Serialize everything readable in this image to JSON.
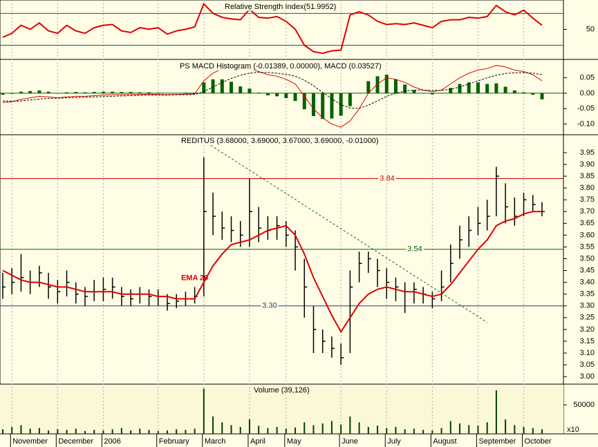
{
  "chart_data": [
    {
      "type": "line",
      "title": "Relative Strength Index(51.9952)",
      "color": "#dd0000",
      "values": [
        40,
        45,
        55,
        50,
        58,
        48,
        45,
        55,
        48,
        45,
        52,
        55,
        56,
        48,
        46,
        52,
        50,
        52,
        44,
        48,
        50,
        53,
        82,
        70,
        65,
        63,
        62,
        75,
        65,
        64,
        66,
        60,
        50,
        30,
        22,
        20,
        23,
        24,
        68,
        72,
        68,
        60,
        56,
        57,
        56,
        58,
        55,
        52,
        60,
        62,
        62,
        65,
        64,
        66,
        80,
        72,
        68,
        74,
        64,
        55
      ],
      "ylim": [
        14,
        85
      ],
      "yticks": [
        50
      ],
      "levels": [
        {
          "value": 70,
          "color": "#1d5a5a"
        },
        {
          "value": 30,
          "color": "#1d5a5a"
        }
      ]
    },
    {
      "type": "macd",
      "title": "PS MACD Histogram (-0.01389, 0.00000), MACD (0.03527)",
      "series": [
        {
          "name": "Histogram",
          "color": "#006400",
          "values": [
            -0.005,
            -0.002,
            0.005,
            0.007,
            0.009,
            0.005,
            0.001,
            0.003,
            0.004,
            0.003,
            0.004,
            0.005,
            0.005,
            0.004,
            0.004,
            0.003,
            0.003,
            0.002,
            0.001,
            0.001,
            0.002,
            0.002,
            0.035,
            0.045,
            0.045,
            0.037,
            0.022,
            0.015,
            0.002,
            -0.007,
            -0.01,
            -0.016,
            -0.025,
            -0.052,
            -0.074,
            -0.083,
            -0.082,
            -0.073,
            -0.042,
            -0.001,
            0.039,
            0.055,
            0.06,
            0.045,
            0.028,
            0.01,
            0.0,
            -0.004,
            0.001,
            0.017,
            0.03,
            0.035,
            0.035,
            0.03,
            0.032,
            0.021,
            0.009,
            0.003,
            -0.005,
            -0.02
          ]
        },
        {
          "name": "MACD",
          "color": "#dd0000",
          "values": [
            -0.03,
            -0.028,
            -0.02,
            -0.015,
            -0.01,
            -0.012,
            -0.015,
            -0.012,
            -0.01,
            -0.01,
            -0.008,
            -0.006,
            -0.005,
            -0.005,
            -0.004,
            -0.004,
            -0.003,
            -0.004,
            -0.005,
            -0.004,
            -0.003,
            -0.002,
            0.04,
            0.065,
            0.08,
            0.085,
            0.08,
            0.08,
            0.07,
            0.06,
            0.055,
            0.045,
            0.03,
            -0.01,
            -0.05,
            -0.08,
            -0.1,
            -0.11,
            -0.09,
            -0.05,
            0.0,
            0.03,
            0.05,
            0.045,
            0.035,
            0.02,
            0.01,
            0.005,
            0.01,
            0.03,
            0.05,
            0.065,
            0.075,
            0.08,
            0.09,
            0.085,
            0.075,
            0.07,
            0.06,
            0.04
          ]
        },
        {
          "name": "Signal",
          "color": "#000000",
          "values": [
            -0.025,
            -0.026,
            -0.025,
            -0.022,
            -0.019,
            -0.017,
            -0.016,
            -0.015,
            -0.014,
            -0.013,
            -0.012,
            -0.011,
            -0.01,
            -0.009,
            -0.008,
            -0.007,
            -0.006,
            -0.006,
            -0.006,
            -0.005,
            -0.005,
            -0.004,
            0.005,
            0.02,
            0.035,
            0.048,
            0.058,
            0.065,
            0.068,
            0.067,
            0.065,
            0.061,
            0.055,
            0.042,
            0.024,
            0.003,
            -0.018,
            -0.037,
            -0.048,
            -0.049,
            -0.039,
            -0.025,
            -0.01,
            0.0,
            0.007,
            0.01,
            0.01,
            0.009,
            0.009,
            0.013,
            0.02,
            0.03,
            0.04,
            0.05,
            0.058,
            0.064,
            0.066,
            0.067,
            0.065,
            0.06
          ]
        }
      ],
      "ylim": [
        -0.13,
        0.105
      ],
      "yticks": [
        0.05,
        {
          "value": 0,
          "label": "0.00"
        },
        -0.05,
        {
          "value": -0.1,
          "label": "-0.10"
        }
      ]
    },
    {
      "type": "ohlc",
      "title": "REDITUS (3.68000, 3.69000, 3.67000, 3.69000, -0.01000)",
      "color": "#000000",
      "high": [
        3.44,
        3.46,
        3.52,
        3.45,
        3.47,
        3.44,
        3.41,
        3.45,
        3.4,
        3.38,
        3.41,
        3.42,
        3.42,
        3.38,
        3.37,
        3.38,
        3.37,
        3.37,
        3.35,
        3.35,
        3.36,
        3.38,
        3.93,
        3.78,
        3.7,
        3.68,
        3.66,
        3.84,
        3.72,
        3.68,
        3.68,
        3.66,
        3.62,
        3.5,
        3.3,
        3.2,
        3.17,
        3.14,
        3.45,
        3.53,
        3.53,
        3.5,
        3.46,
        3.42,
        3.4,
        3.4,
        3.38,
        3.36,
        3.45,
        3.56,
        3.64,
        3.68,
        3.72,
        3.75,
        3.89,
        3.82,
        3.76,
        3.78,
        3.77,
        3.74
      ],
      "low": [
        3.33,
        3.35,
        3.36,
        3.35,
        3.38,
        3.33,
        3.31,
        3.34,
        3.31,
        3.3,
        3.32,
        3.32,
        3.33,
        3.3,
        3.3,
        3.31,
        3.3,
        3.3,
        3.28,
        3.29,
        3.3,
        3.31,
        3.34,
        3.6,
        3.58,
        3.57,
        3.55,
        3.55,
        3.57,
        3.58,
        3.58,
        3.55,
        3.45,
        3.25,
        3.1,
        3.1,
        3.08,
        3.05,
        3.1,
        3.4,
        3.44,
        3.38,
        3.33,
        3.32,
        3.27,
        3.31,
        3.31,
        3.29,
        3.32,
        3.4,
        3.5,
        3.55,
        3.6,
        3.62,
        3.68,
        3.65,
        3.64,
        3.68,
        3.7,
        3.68
      ],
      "close": [
        3.38,
        3.4,
        3.42,
        3.4,
        3.44,
        3.38,
        3.36,
        3.4,
        3.35,
        3.34,
        3.36,
        3.37,
        3.38,
        3.34,
        3.33,
        3.35,
        3.34,
        3.34,
        3.31,
        3.32,
        3.33,
        3.34,
        3.7,
        3.68,
        3.63,
        3.62,
        3.6,
        3.7,
        3.63,
        3.62,
        3.64,
        3.6,
        3.55,
        3.38,
        3.2,
        3.15,
        3.12,
        3.08,
        3.38,
        3.48,
        3.5,
        3.45,
        3.4,
        3.38,
        3.36,
        3.37,
        3.35,
        3.33,
        3.38,
        3.48,
        3.58,
        3.62,
        3.65,
        3.68,
        3.85,
        3.72,
        3.68,
        3.75,
        3.73,
        3.7
      ],
      "ema": {
        "name": "EMA 20",
        "color": "#dd0000",
        "values": [
          3.45,
          3.43,
          3.41,
          3.4,
          3.4,
          3.39,
          3.38,
          3.38,
          3.37,
          3.36,
          3.36,
          3.36,
          3.36,
          3.35,
          3.35,
          3.35,
          3.35,
          3.34,
          3.34,
          3.33,
          3.33,
          3.33,
          3.4,
          3.47,
          3.52,
          3.56,
          3.57,
          3.58,
          3.6,
          3.62,
          3.63,
          3.64,
          3.6,
          3.52,
          3.42,
          3.34,
          3.26,
          3.19,
          3.25,
          3.31,
          3.35,
          3.37,
          3.38,
          3.37,
          3.36,
          3.36,
          3.35,
          3.34,
          3.35,
          3.39,
          3.44,
          3.49,
          3.54,
          3.58,
          3.64,
          3.66,
          3.67,
          3.69,
          3.7,
          3.7
        ]
      },
      "levels": [
        {
          "value": 3.84,
          "color": "#cc0000"
        },
        {
          "value": 3.54,
          "color": "#006600"
        },
        {
          "value": 3.3,
          "label": "3.30",
          "color": "#1d3a7a"
        }
      ],
      "trendline": {
        "start": [
          22,
          4.0
        ],
        "end": [
          53,
          3.23
        ],
        "color": "#006600"
      },
      "ylim": [
        2.971,
        4.023
      ],
      "yticks": [
        {
          "value": 3.0,
          "label": "3.00"
        },
        3.05,
        {
          "value": 3.1,
          "label": "3.10"
        },
        3.15,
        {
          "value": 3.2,
          "label": "3.20"
        },
        3.25,
        {
          "value": 3.3,
          "label": "3.30"
        },
        3.35,
        {
          "value": 3.4,
          "label": "3.40"
        },
        3.45,
        {
          "value": 3.5,
          "label": "3.50"
        },
        3.55,
        {
          "value": 3.6,
          "label": "3.60"
        },
        3.65,
        {
          "value": 3.7,
          "label": "3.70"
        },
        3.75,
        {
          "value": 3.8,
          "label": "3.80"
        },
        3.85,
        {
          "value": 3.9,
          "label": "3.90"
        },
        3.95
      ]
    },
    {
      "type": "bar",
      "title": "Volume (39,126)",
      "color": "#004000",
      "unit_label": "x10",
      "categories": [
        null,
        "November",
        null,
        null,
        null,
        null,
        "December",
        null,
        null,
        null,
        null,
        "2006",
        null,
        null,
        null,
        null,
        null,
        "February",
        null,
        null,
        null,
        null,
        "March",
        null,
        null,
        null,
        null,
        "April",
        null,
        null,
        null,
        "May",
        null,
        null,
        null,
        null,
        null,
        "June",
        null,
        null,
        null,
        null,
        "July",
        null,
        null,
        null,
        null,
        "August",
        null,
        null,
        null,
        null,
        "September",
        null,
        null,
        null,
        null,
        "October",
        null,
        null
      ],
      "values": [
        8000,
        12000,
        15000,
        9000,
        10000,
        6000,
        8000,
        7000,
        9000,
        5000,
        7000,
        6000,
        8000,
        10000,
        6000,
        9000,
        7000,
        5000,
        6000,
        8000,
        7000,
        9000,
        78000,
        30000,
        20000,
        15000,
        12000,
        25000,
        14000,
        10000,
        12000,
        9000,
        11000,
        20000,
        15000,
        18000,
        22000,
        16000,
        30000,
        20000,
        12000,
        14000,
        10000,
        12000,
        8000,
        9000,
        7000,
        6000,
        10000,
        22000,
        18000,
        15000,
        14000,
        20000,
        75000,
        25000,
        15000,
        12000,
        10000,
        8000
      ],
      "ylim": [
        0,
        84500
      ],
      "yticks": [
        50000
      ]
    }
  ]
}
